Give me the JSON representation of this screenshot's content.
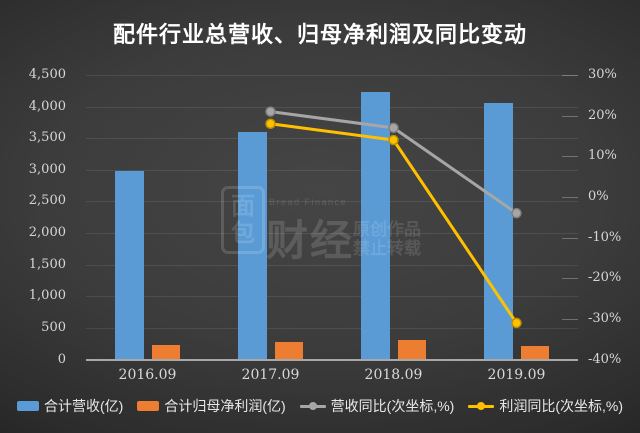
{
  "title": "配件行业总营收、归母净利润及同比变动",
  "watermark": {
    "logo_top": "面",
    "logo_bottom": "包",
    "brand": "财经",
    "small": "Bread Finance",
    "line1": "原创作品",
    "line2": "禁止转载"
  },
  "chart_data": {
    "type": "bar",
    "subtype": "combo-bar-line-dual-axis",
    "categories": [
      "2016.09",
      "2017.09",
      "2018.09",
      "2019.09"
    ],
    "bar_series": [
      {
        "name": "合计营收(亿)",
        "color": "#5b9bd5",
        "axis": "left",
        "values": [
          2980,
          3600,
          4230,
          4060
        ]
      },
      {
        "name": "合计归母净利润(亿)",
        "color": "#ed7d31",
        "axis": "left",
        "values": [
          230,
          270,
          310,
          215
        ]
      }
    ],
    "line_series": [
      {
        "name": "营收同比(次坐标,%)",
        "color": "#a6a6a6",
        "marker_stroke": "#7f7f7f",
        "axis": "right",
        "values": [
          null,
          21,
          17,
          -4
        ]
      },
      {
        "name": "利润同比(次坐标,%)",
        "color": "#ffc000",
        "marker_stroke": "#bf8f00",
        "axis": "right",
        "values": [
          null,
          18,
          14,
          -31
        ]
      }
    ],
    "left_axis": {
      "min": 0,
      "max": 4500,
      "step": 500
    },
    "right_axis": {
      "min": -40,
      "max": 30,
      "step": 10,
      "suffix": "%"
    },
    "grid": "horizontal, left-axis spacing",
    "legend_position": "bottom"
  }
}
